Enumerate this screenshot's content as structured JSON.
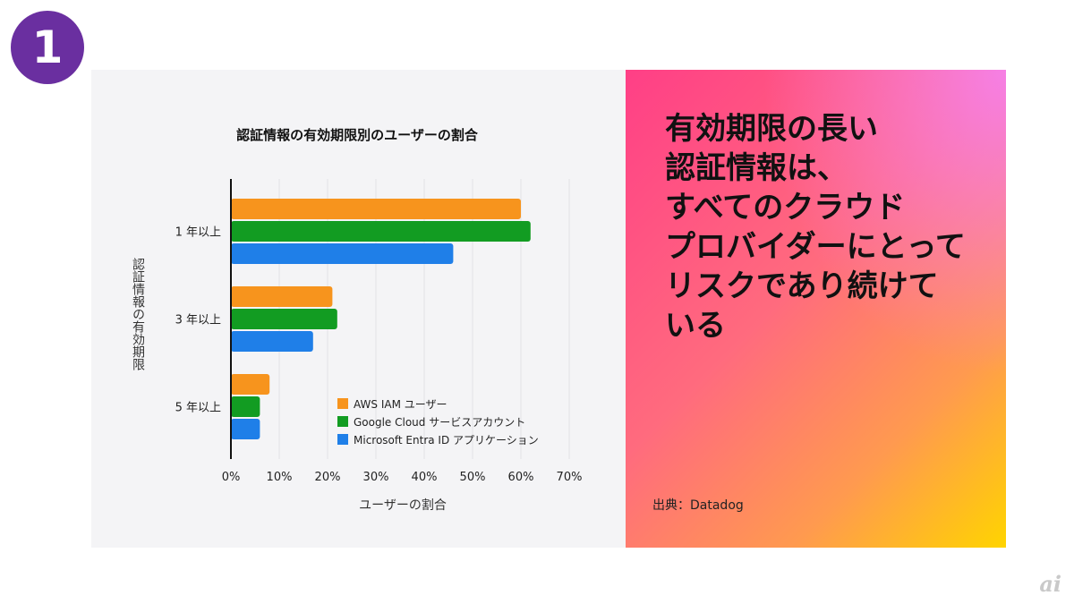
{
  "badge": "1",
  "headline_lines": [
    "有効期限の長い",
    "認証情報は、",
    "すべてのクラウド",
    "プロバイダーにとって",
    "リスクであり続けて",
    "いる"
  ],
  "source": "出典：Datadog",
  "watermark": "ai",
  "colors": {
    "aws": "#f7941d",
    "gcp": "#129c22",
    "entra": "#1f7fe8",
    "badge": "#6a2fa0"
  },
  "chart_data": {
    "type": "bar",
    "orientation": "horizontal",
    "title": "認証情報の有効期限別のユーザーの割合",
    "xlabel": "ユーザーの割合",
    "ylabel": "認証情報の有効期限",
    "categories": [
      "1 年以上",
      "3 年以上",
      "5 年以上"
    ],
    "xlim": [
      0,
      70
    ],
    "xticks": [
      "0%",
      "10%",
      "20%",
      "30%",
      "40%",
      "50%",
      "60%",
      "70%"
    ],
    "grid": true,
    "legend_position": "bottom-right",
    "series": [
      {
        "name": "AWS IAM ユーザー",
        "color": "#f7941d",
        "values": [
          60,
          21,
          8
        ]
      },
      {
        "name": "Google Cloud サービスアカウント",
        "color": "#129c22",
        "values": [
          62,
          22,
          6
        ]
      },
      {
        "name": "Microsoft Entra ID アプリケーション",
        "color": "#1f7fe8",
        "values": [
          46,
          17,
          6
        ]
      }
    ]
  }
}
